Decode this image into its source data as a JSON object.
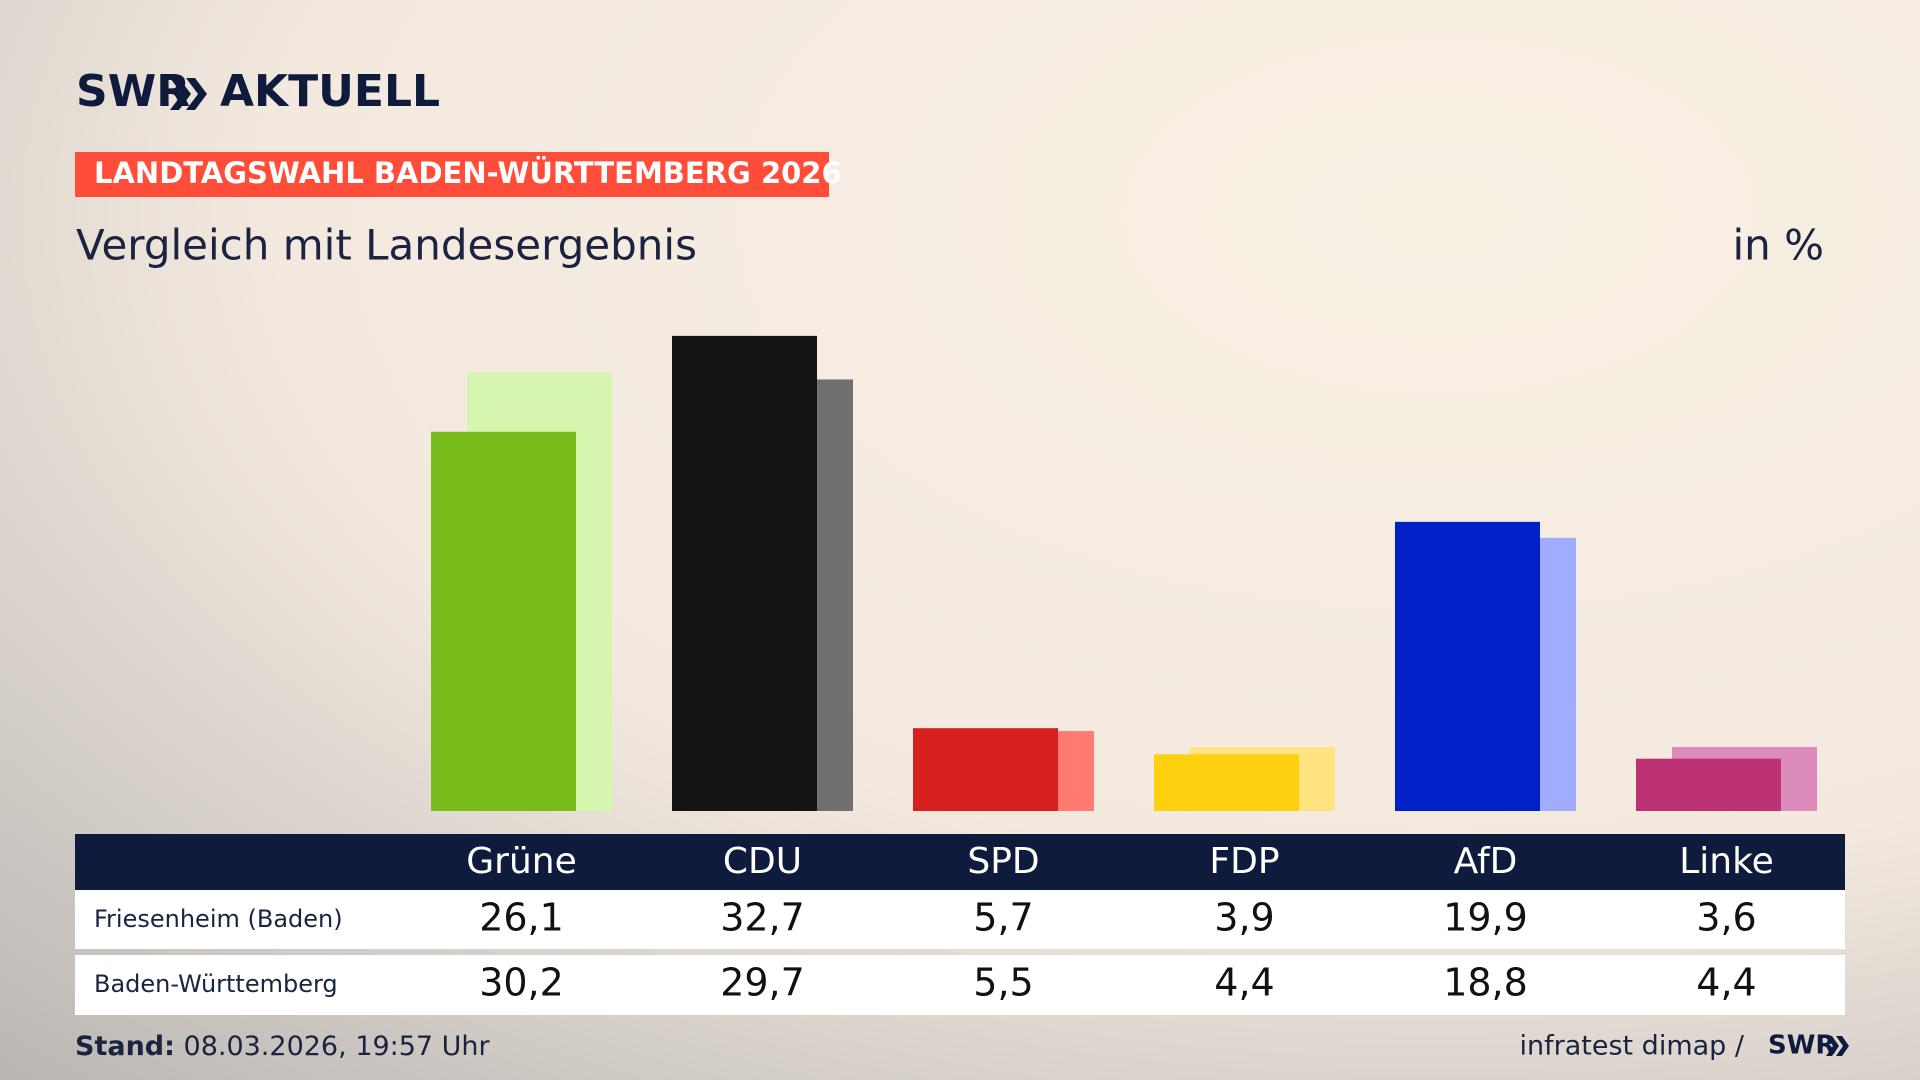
{
  "brand": {
    "name": "SWR",
    "section": "AKTUELL"
  },
  "tag": "LANDTAGSWAHL BADEN-WÜRTTEMBERG 2026",
  "chart_data": {
    "type": "bar",
    "title": "Vergleich mit Landesergebnis",
    "unit_label": "in %",
    "categories": [
      "Grüne",
      "CDU",
      "SPD",
      "FDP",
      "AfD",
      "Linke"
    ],
    "series": [
      {
        "name": "Friesenheim (Baden)",
        "color": [
          "#78bd1c",
          "#141414",
          "#d6201e",
          "#ffd00f",
          "#0020c8",
          "#bd3175"
        ],
        "values": [
          26.1,
          32.7,
          5.7,
          3.9,
          19.9,
          3.6
        ],
        "value_labels": [
          "26,1",
          "32,7",
          "5,7",
          "3,9",
          "19,9",
          "3,6"
        ]
      },
      {
        "name": "Baden-Württemberg",
        "color": [
          "#d6f5ae",
          "#707070",
          "#ff7a70",
          "#ffe380",
          "#a0adff",
          "#dc8cbc"
        ],
        "values": [
          30.2,
          29.7,
          5.5,
          4.4,
          18.8,
          4.4
        ],
        "value_labels": [
          "30,2",
          "29,7",
          "5,5",
          "4,4",
          "18,8",
          "4,4"
        ]
      }
    ]
  },
  "footer": {
    "stand_label": "Stand:",
    "stand": "08.03.2026, 19:57 Uhr",
    "source": "infratest dimap /",
    "source_logo": "SWR"
  }
}
